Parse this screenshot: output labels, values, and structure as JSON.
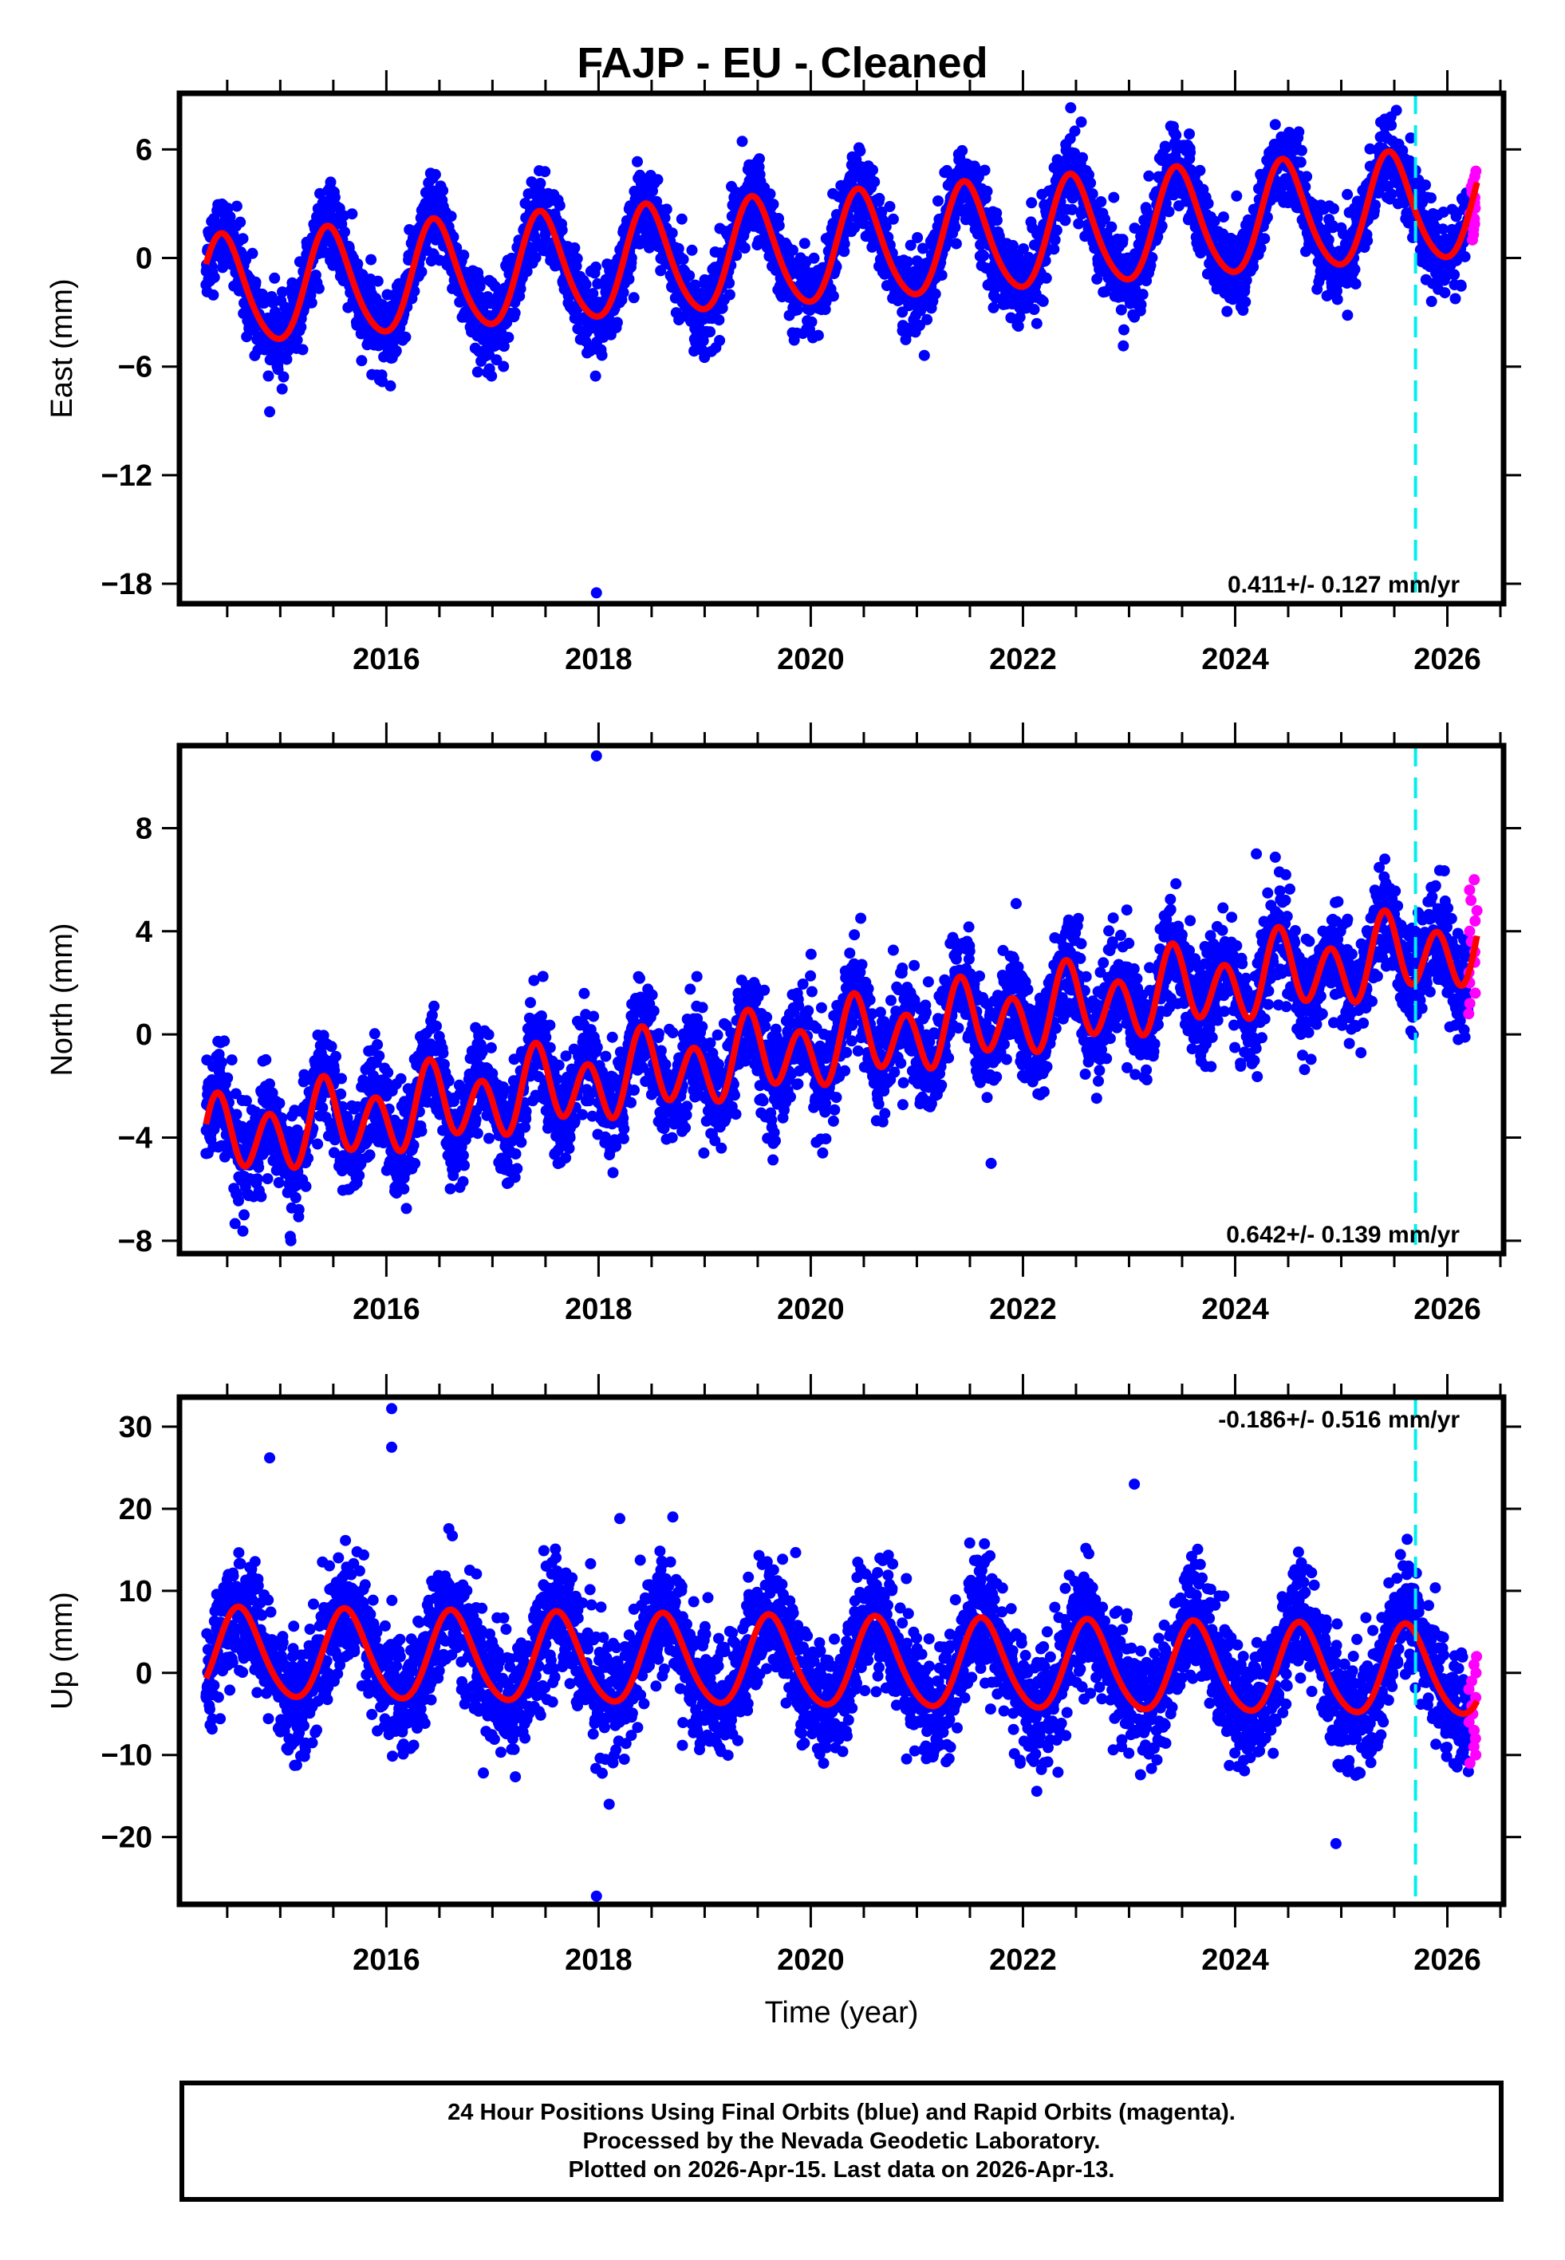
{
  "chart_data": [
    {
      "type": "scatter",
      "title": "FAJP  - EU - Cleaned",
      "xlabel": "",
      "ylabel": "East (mm)",
      "xlim": [
        2014.05,
        2026.53
      ],
      "ylim": [
        -19.1,
        9.1
      ],
      "yticks": [
        6,
        0,
        -6,
        -12,
        -18
      ],
      "ytick_labels": [
        "6",
        "0",
        "−6",
        "−12",
        "−18"
      ],
      "xticks": [
        2016,
        2018,
        2020,
        2022,
        2024,
        2026
      ],
      "xtick_labels": [
        "2016",
        "2018",
        "2020",
        "2022",
        "2024",
        "2026"
      ],
      "rate_label": "0.411+/- 0.127 mm/yr",
      "rate_position": "bottom-right",
      "model": {
        "offset": -2.0,
        "trend": 0.411,
        "annual": 3.0,
        "semiannual": 0.35,
        "phase_year": 0.46,
        "noise": 1.1
      },
      "outliers": [
        [
          2017.98,
          -18.5
        ],
        [
          2022.45,
          8.3
        ],
        [
          2014.9,
          -8.5
        ]
      ],
      "rapid_points_x_range": [
        2026.2,
        2026.28
      ],
      "rapid_points_y_range": [
        1.0,
        4.8
      ],
      "discontinuity_x": 2025.7,
      "data_span": [
        2014.3,
        2026.28
      ]
    },
    {
      "type": "scatter",
      "ylabel": "North (mm)",
      "xlim": [
        2014.05,
        2026.53
      ],
      "ylim": [
        -8.5,
        11.2
      ],
      "yticks": [
        8,
        4,
        0,
        -4,
        -8
      ],
      "ytick_labels": [
        "8",
        "4",
        "0",
        "−4",
        "−8"
      ],
      "xticks": [
        2016,
        2018,
        2020,
        2022,
        2024,
        2026
      ],
      "xtick_labels": [
        "2016",
        "2018",
        "2020",
        "2022",
        "2024",
        "2026"
      ],
      "rate_label": "0.642+/- 0.139 mm/yr",
      "rate_position": "bottom-right",
      "model": {
        "offset": -4.2,
        "trend": 0.642,
        "annual": 0.6,
        "semiannual": 1.3,
        "phase_year": 0.45,
        "noise": 1.0
      },
      "outliers": [
        [
          2017.98,
          10.8
        ],
        [
          2015.1,
          -8.0
        ],
        [
          2021.7,
          -5.0
        ],
        [
          2024.2,
          7.0
        ]
      ],
      "rapid_points_x_range": [
        2026.2,
        2026.28
      ],
      "rapid_points_y_range": [
        0.8,
        6.0
      ],
      "discontinuity_x": 2025.7,
      "data_span": [
        2014.3,
        2026.28
      ]
    },
    {
      "type": "scatter",
      "ylabel": "Up (mm)",
      "xlabel": "Time (year)",
      "xlim": [
        2014.05,
        2026.53
      ],
      "ylim": [
        -28.2,
        33.6
      ],
      "yticks": [
        30,
        20,
        10,
        0,
        -10,
        -20
      ],
      "ytick_labels": [
        "30",
        "20",
        "10",
        "0",
        "−10",
        "−20"
      ],
      "xticks": [
        2016,
        2018,
        2020,
        2022,
        2024,
        2026
      ],
      "xtick_labels": [
        "2016",
        "2018",
        "2020",
        "2022",
        "2024",
        "2026"
      ],
      "rate_label": "-0.186+/- 0.516 mm/yr",
      "rate_position": "top-right",
      "model": {
        "offset": 2.2,
        "trend": -0.186,
        "annual": 5.4,
        "semiannual": 0.6,
        "phase_year": 0.62,
        "noise": 3.6
      },
      "outliers": [
        [
          2017.98,
          -27.2
        ],
        [
          2016.05,
          32.2
        ],
        [
          2016.05,
          27.5
        ],
        [
          2014.9,
          26.2
        ],
        [
          2023.05,
          23.0
        ],
        [
          2018.1,
          -16.0
        ],
        [
          2018.2,
          18.8
        ],
        [
          2024.95,
          -20.8
        ]
      ],
      "rapid_points_x_range": [
        2026.2,
        2026.28
      ],
      "rapid_points_y_range": [
        -11.0,
        2.0
      ],
      "discontinuity_x": 2025.7,
      "data_span": [
        2014.3,
        2026.28
      ]
    }
  ],
  "colors": {
    "final_orbits": "#0000ff",
    "rapid_orbits": "#ff00ff",
    "model_fit": "#ff0000",
    "discontinuity": "#00eeee",
    "frame": "#000000"
  },
  "footer": {
    "line1": "24 Hour Positions Using Final Orbits (blue) and Rapid Orbits (magenta).",
    "line2": "Processed by the Nevada Geodetic Laboratory.",
    "line3": "Plotted on 2026-Apr-15. Last data on 2026-Apr-13."
  }
}
